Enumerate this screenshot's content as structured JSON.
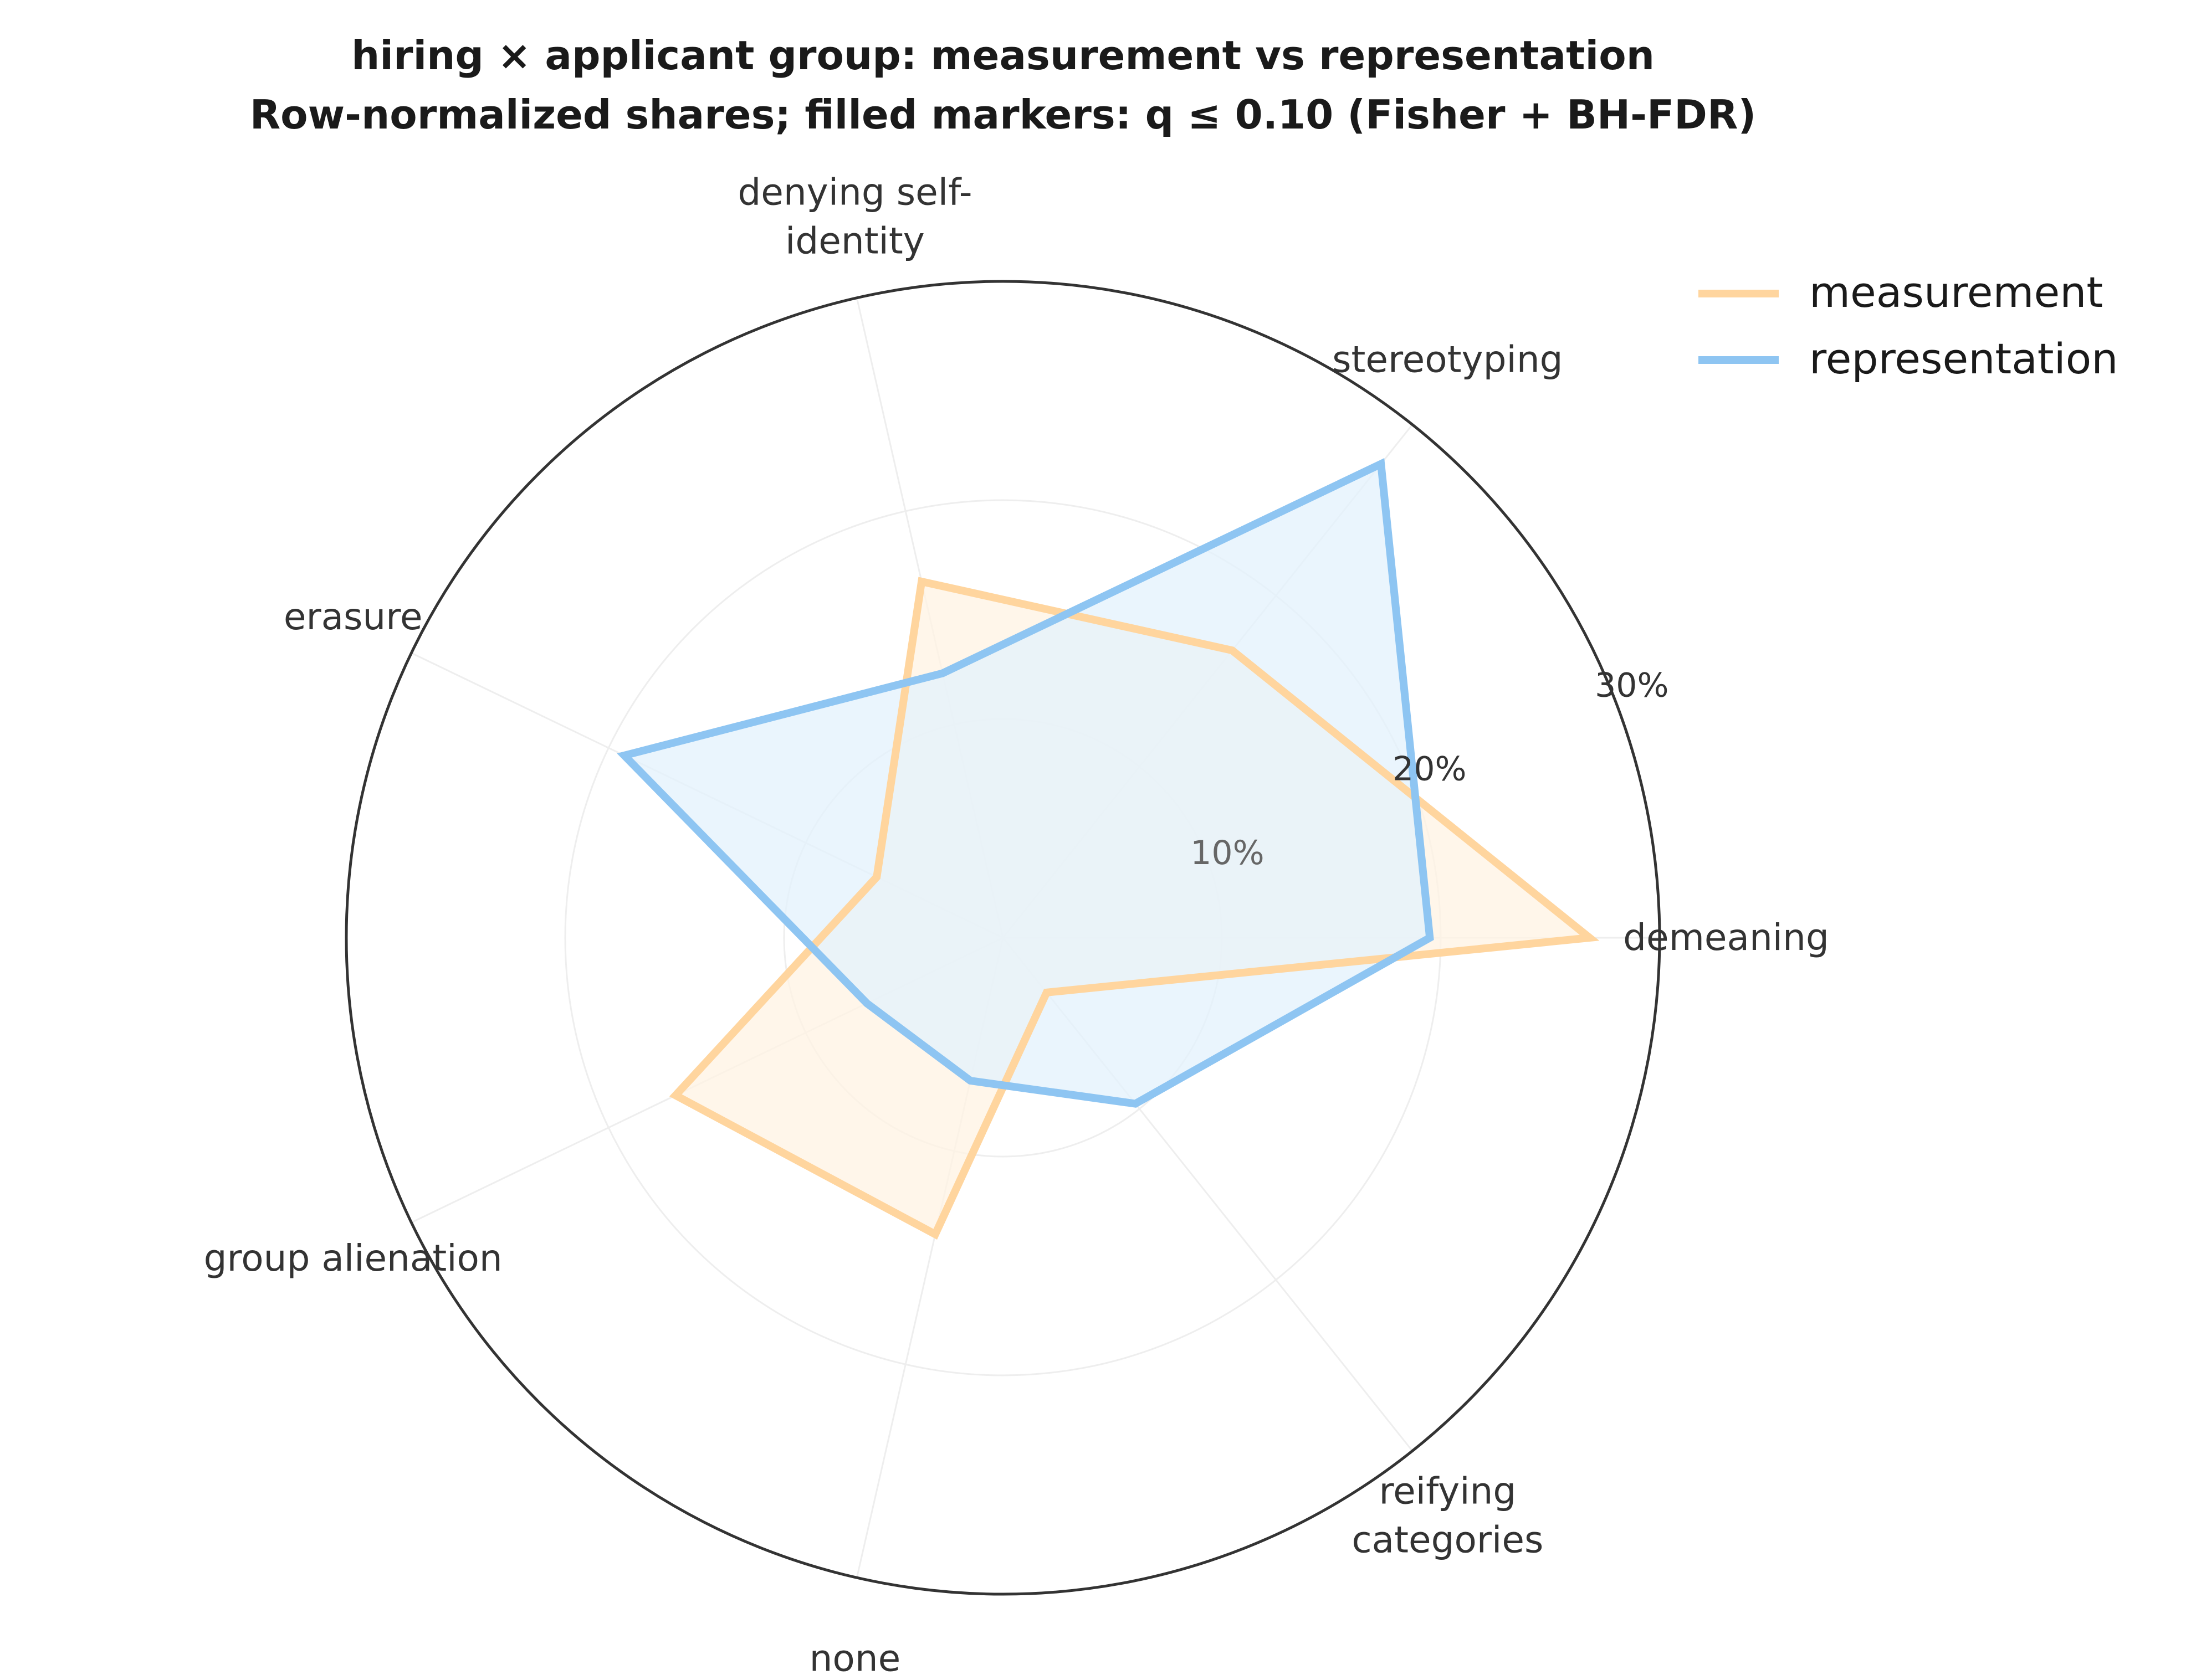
{
  "chart_data": {
    "type": "radar",
    "title": "hiring × applicant group: measurement vs representation",
    "subtitle": "Row-normalized shares; filled markers: q ≤ 0.10 (Fisher + BH-FDR)",
    "categories": [
      "demeaning",
      "stereotyping",
      "denying self-identity",
      "erasure",
      "group alienation",
      "none",
      "reifying categories"
    ],
    "category_lines": [
      [
        "demeaning"
      ],
      [
        "stereotyping"
      ],
      [
        "denying self-",
        "identity"
      ],
      [
        "erasure"
      ],
      [
        "group alienation"
      ],
      [
        "none"
      ],
      [
        "reifying",
        "categories"
      ]
    ],
    "series": [
      {
        "name": "measurement",
        "color": "#ffd59e",
        "fill": "#fff3e3",
        "values": [
          26.8,
          16.8,
          16.7,
          6.4,
          16.6,
          13.9,
          3.2
        ]
      },
      {
        "name": "representation",
        "color": "#8ec5f2",
        "fill": "#e3f1fc",
        "values": [
          19.5,
          27.7,
          12.4,
          19.2,
          6.9,
          6.7,
          9.7
        ]
      }
    ],
    "rlim": [
      0,
      30
    ],
    "rticks": [
      10,
      20,
      30
    ],
    "rtick_labels": [
      "10%",
      "20%",
      "30%"
    ],
    "grid": true,
    "legend_position": "top-right"
  }
}
